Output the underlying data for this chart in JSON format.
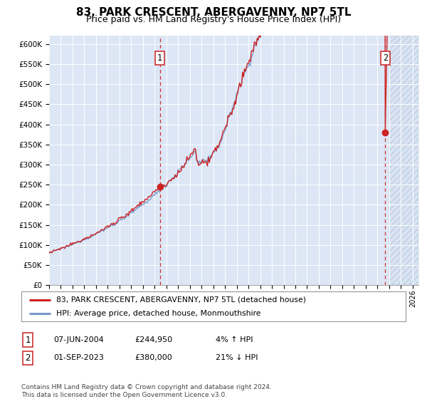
{
  "title": "83, PARK CRESCENT, ABERGAVENNY, NP7 5TL",
  "subtitle": "Price paid vs. HM Land Registry's House Price Index (HPI)",
  "ylim": [
    0,
    620000
  ],
  "yticks": [
    0,
    50000,
    100000,
    150000,
    200000,
    250000,
    300000,
    350000,
    400000,
    450000,
    500000,
    550000,
    600000
  ],
  "xlim_start": 1995.0,
  "xlim_end": 2026.5,
  "background_color": "#dce6f5",
  "hpi_color": "#7799cc",
  "price_color": "#cc2222",
  "dashed_color": "#cc3333",
  "marker1_x": 2004.44,
  "marker1_y": 244950,
  "marker2_x": 2023.67,
  "marker2_y": 380000,
  "legend_label1": "83, PARK CRESCENT, ABERGAVENNY, NP7 5TL (detached house)",
  "legend_label2": "HPI: Average price, detached house, Monmouthshire",
  "table_row1": [
    "1",
    "07-JUN-2004",
    "£244,950",
    "4% ↑ HPI"
  ],
  "table_row2": [
    "2",
    "01-SEP-2023",
    "£380,000",
    "21% ↓ HPI"
  ],
  "footer": "Contains HM Land Registry data © Crown copyright and database right 2024.\nThis data is licensed under the Open Government Licence v3.0.",
  "title_fontsize": 11,
  "subtitle_fontsize": 9
}
